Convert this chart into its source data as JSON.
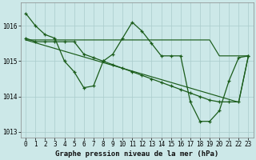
{
  "title": "Graphe pression niveau de la mer (hPa)",
  "bg_color": "#cce8e8",
  "line_color": "#1a5c1a",
  "grid_color": "#aacccc",
  "hours": [
    0,
    1,
    2,
    3,
    4,
    5,
    6,
    7,
    8,
    9,
    10,
    11,
    12,
    13,
    14,
    15,
    16,
    17,
    18,
    19,
    20,
    21,
    22,
    23
  ],
  "line1": [
    1016.35,
    1016.0,
    1015.75,
    1015.65,
    1015.0,
    1014.7,
    1014.25,
    1014.3,
    1015.0,
    1015.2,
    1015.65,
    1016.1,
    1015.85,
    1015.5,
    1015.15,
    1015.15,
    1015.15,
    1013.85,
    1013.3,
    1013.3,
    1013.6,
    1014.45,
    1015.1,
    1015.15
  ],
  "line2_markers": [
    1015.65,
    1015.55,
    1015.55,
    1015.55,
    1015.55,
    1015.55,
    1015.2,
    1015.1,
    1015.0,
    1014.9,
    1014.8,
    1014.7,
    1014.6,
    1014.5,
    1014.4,
    1014.3,
    1014.2,
    1014.1,
    1014.0,
    1013.9,
    1013.85,
    1013.85,
    1013.85,
    1015.15
  ],
  "line3_flat": [
    1015.6,
    1015.6,
    1015.6,
    1015.6,
    1015.6,
    1015.6,
    1015.6,
    1015.6,
    1015.6,
    1015.6,
    1015.6,
    1015.6,
    1015.6,
    1015.6,
    1015.6,
    1015.6,
    1015.6,
    1015.6,
    1015.6,
    1015.6,
    1015.15,
    1015.15,
    1015.15,
    1015.15
  ],
  "line4_diag": [
    1015.6,
    1015.52,
    1015.44,
    1015.36,
    1015.28,
    1015.2,
    1015.12,
    1015.04,
    1014.96,
    1014.88,
    1014.8,
    1014.72,
    1014.64,
    1014.56,
    1014.48,
    1014.4,
    1014.32,
    1014.24,
    1014.16,
    1014.08,
    1014.0,
    1013.92,
    1013.84,
    1015.15
  ],
  "ylim_min": 1012.85,
  "ylim_max": 1016.65,
  "yticks": [
    1013,
    1014,
    1015,
    1016
  ],
  "title_fontsize": 6.5,
  "tick_fontsize": 5.5
}
